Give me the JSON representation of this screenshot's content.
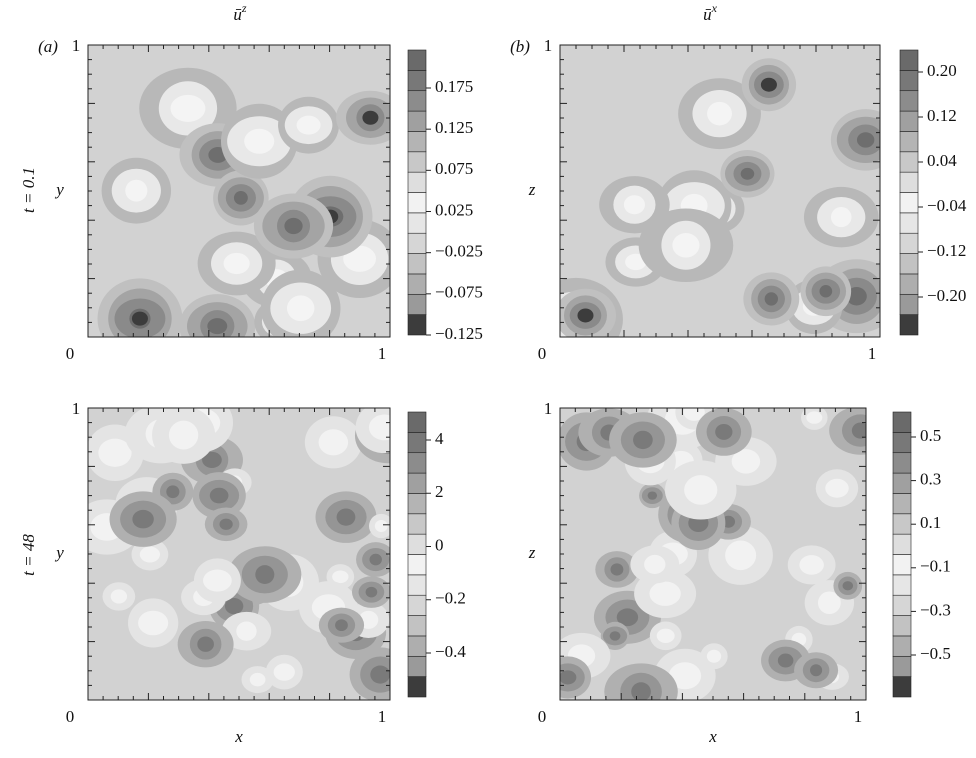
{
  "figure": {
    "columns": [
      {
        "panel_label": "(a)",
        "title": {
          "base": "ū",
          "sup": "z"
        }
      },
      {
        "panel_label": "(b)",
        "title": {
          "base": "ū",
          "sup": "x"
        }
      }
    ],
    "rows": [
      {
        "label": "t = 0.1"
      },
      {
        "label": "t = 48"
      }
    ],
    "panels": [
      {
        "y_label": "y",
        "x_label": null,
        "tick_labels": [
          "0",
          "1",
          "1"
        ],
        "colorbar": [
          "0.175",
          "0.125",
          "0.075",
          "0.025",
          "−0.025",
          "−0.075",
          "−0.125"
        ]
      },
      {
        "y_label": "z",
        "x_label": null,
        "tick_labels": [
          "0",
          "1",
          "1"
        ],
        "colorbar": [
          "0.20",
          "0.12",
          "0.04",
          "−0.04",
          "−0.12",
          "−0.20"
        ]
      },
      {
        "y_label": "y",
        "x_label": "x",
        "tick_labels": [
          "0",
          "1",
          "1"
        ],
        "colorbar": [
          "4",
          "2",
          "0",
          "−0.2",
          "−0.4"
        ]
      },
      {
        "y_label": "z",
        "x_label": "x",
        "tick_labels": [
          "0",
          "1",
          "1"
        ],
        "colorbar": [
          "0.5",
          "0.3",
          "0.1",
          "−0.1",
          "−0.3",
          "−0.5"
        ]
      }
    ]
  }
}
